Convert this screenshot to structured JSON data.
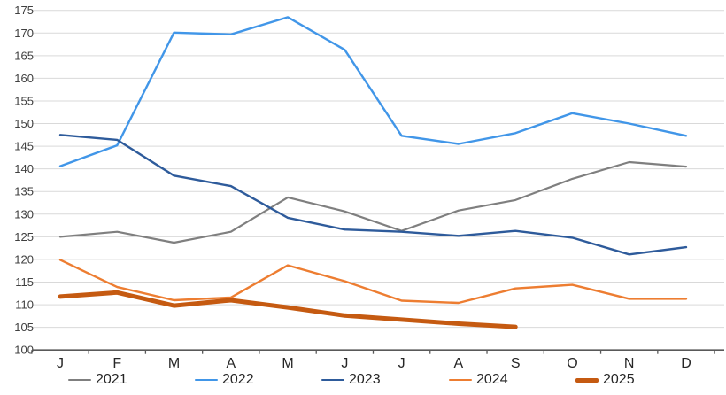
{
  "chart_data": {
    "type": "line",
    "title": "",
    "xlabel": "",
    "ylabel": "",
    "categories": [
      "J",
      "F",
      "M",
      "A",
      "M",
      "J",
      "J",
      "A",
      "S",
      "O",
      "N",
      "D"
    ],
    "y_axis": {
      "min": 100,
      "max": 175,
      "step": 5,
      "tick_labels": [
        "100",
        "105",
        "110",
        "115",
        "120",
        "125",
        "130",
        "135",
        "140",
        "145",
        "150",
        "155",
        "160",
        "165",
        "170",
        "175"
      ]
    },
    "grid": true,
    "legend_position": "bottom",
    "series": [
      {
        "name": "2021",
        "color": "#7f7f7f",
        "width": 2.2,
        "values": [
          125.0,
          126.1,
          123.7,
          126.1,
          133.7,
          130.6,
          126.3,
          130.8,
          133.1,
          137.8,
          141.5,
          140.5
        ]
      },
      {
        "name": "2022",
        "color": "#4196e8",
        "width": 2.4,
        "values": [
          140.6,
          145.2,
          170.1,
          169.7,
          173.5,
          166.3,
          147.3,
          145.5,
          147.9,
          152.3,
          150.0,
          147.3
        ]
      },
      {
        "name": "2023",
        "color": "#2e5b9b",
        "width": 2.4,
        "values": [
          147.5,
          146.4,
          138.5,
          136.2,
          129.2,
          126.6,
          126.1,
          125.2,
          126.3,
          124.8,
          121.1,
          122.7
        ]
      },
      {
        "name": "2024",
        "color": "#ed7d31",
        "width": 2.4,
        "values": [
          119.9,
          113.9,
          111.0,
          111.6,
          118.7,
          115.2,
          110.9,
          110.4,
          113.6,
          114.4,
          111.3,
          111.3
        ]
      },
      {
        "name": "2025",
        "color": "#c55a11",
        "width": 5,
        "values": [
          111.8,
          112.7,
          109.8,
          111.0,
          109.4,
          107.6,
          106.7,
          105.8,
          105.1
        ]
      }
    ],
    "colors": {
      "gridline": "#d9d9d9",
      "axis_line": "#595959",
      "axis_text": "#404040"
    }
  }
}
